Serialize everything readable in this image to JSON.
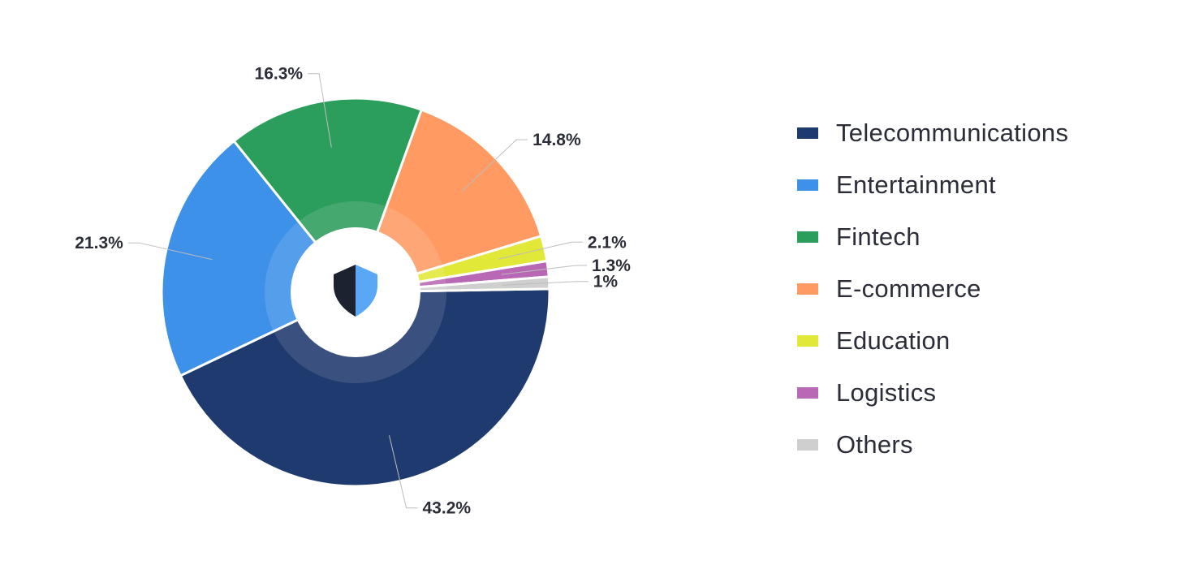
{
  "chart_data": {
    "type": "pie",
    "title": "",
    "categories": [
      "Telecommunications",
      "Entertainment",
      "Fintech",
      "E-commerce",
      "Education",
      "Logistics",
      "Others"
    ],
    "values": [
      43.2,
      21.3,
      16.3,
      14.8,
      2.1,
      1.3,
      1
    ],
    "labels": [
      "43.2%",
      "21.3%",
      "16.3%",
      "14.8%",
      "2.1%",
      "1.3%",
      "1%"
    ],
    "colors": [
      "#1f3a6e",
      "#3d91e9",
      "#2c9e5c",
      "#ff9a63",
      "#e2e838",
      "#b868b4",
      "#cfcfcf"
    ],
    "legend_position": "right",
    "center_icon": "shield-icon"
  }
}
